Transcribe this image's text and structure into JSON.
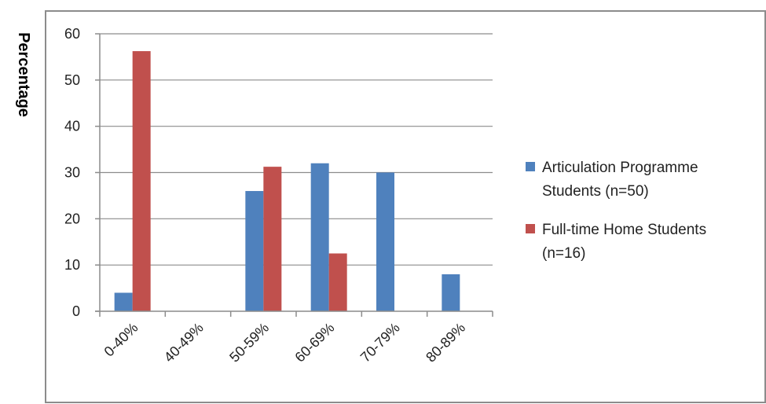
{
  "chart_data": {
    "type": "bar",
    "title": "",
    "xlabel": "",
    "ylabel": "Percentage",
    "categories": [
      "0-40%",
      "40-49%",
      "50-59%",
      "60-69%",
      "70-79%",
      "80-89%"
    ],
    "series": [
      {
        "name": "Articulation Programme Students (n=50)",
        "legend_lines": [
          "Articulation Programme",
          "Students (n=50)"
        ],
        "color": "#4f81bd",
        "values": [
          4,
          0,
          26,
          32,
          30,
          8
        ]
      },
      {
        "name": "Full-time Home Students (n=16)",
        "legend_lines": [
          "Full-time Home Students",
          "(n=16)"
        ],
        "color": "#c0504d",
        "values": [
          56.25,
          0,
          31.25,
          12.5,
          0,
          0
        ]
      }
    ],
    "ylim": [
      0,
      60
    ],
    "yticks": [
      0,
      10,
      20,
      30,
      40,
      50,
      60
    ],
    "grid": true,
    "legend_position": "right"
  }
}
